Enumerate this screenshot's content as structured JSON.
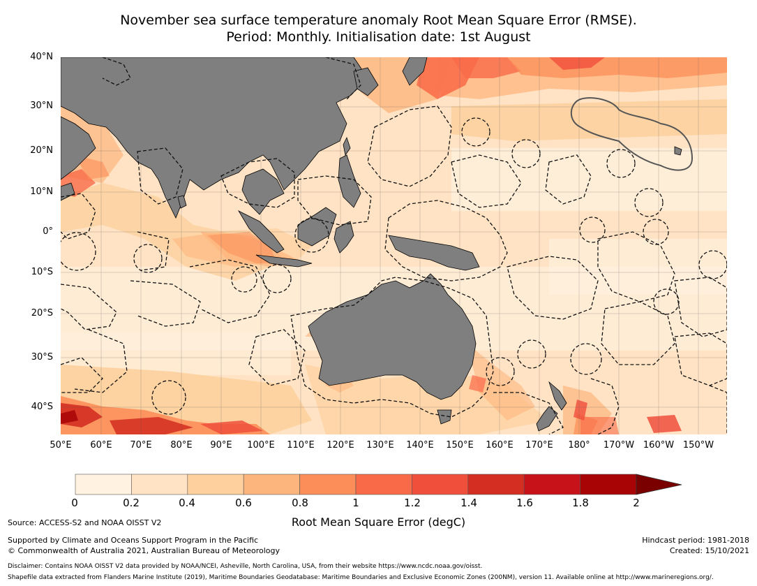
{
  "title": {
    "line1": "November sea surface temperature anomaly Root Mean Square Error (RMSE).",
    "line2": "Period: Monthly. Initialisation date: 1st August"
  },
  "axes": {
    "lat_labels": [
      "40°N",
      "30°N",
      "20°N",
      "10°N",
      "0°",
      "10°S",
      "20°S",
      "30°S",
      "40°S"
    ],
    "lon_labels": [
      "50°E",
      "60°E",
      "70°E",
      "80°E",
      "90°E",
      "100°E",
      "110°E",
      "120°E",
      "130°E",
      "140°E",
      "150°E",
      "160°E",
      "170°E",
      "180°",
      "170°W",
      "160°W",
      "150°W"
    ]
  },
  "map": {
    "land_color": "#7f7f7f",
    "eez_style": "dashed black",
    "highlight_region": "Hawaii EEZ outline"
  },
  "colorbar": {
    "ticks": [
      "0",
      "0.2",
      "0.4",
      "0.6",
      "0.8",
      "1",
      "1.2",
      "1.4",
      "1.6",
      "1.8",
      "2"
    ],
    "colors": [
      "#fff2e0",
      "#ffe3c4",
      "#fdd09e",
      "#fdb57e",
      "#fc8e59",
      "#f96a48",
      "#f04f3c",
      "#d42d21",
      "#c7121a",
      "#a80406"
    ],
    "extend_color": "#7a0000",
    "label": "Root Mean Square Error (degC)"
  },
  "footer": {
    "source": "Source: ACCESS-S2 and NOAA OISST V2",
    "supported": "Supported by Climate and Oceans Support Program in the Pacific",
    "copyright": "© Commonwealth of Australia 2021, Australian Bureau of Meteorology",
    "hindcast": "Hindcast period: 1981-2018",
    "created": "Created: 15/10/2021",
    "disclaimer": "Disclaimer: Contains NOAA OISST V2 data provided by NOAA/NCEI, Asheville, North Carolina, USA, from their website https://www.ncdc.noaa.gov/oisst.",
    "shapefile": "Shapefile data extracted from Flanders Marine Institute (2019), Maritime Boundaries Geodatabase: Maritime Boundaries and Exclusive Economic Zones (200NM), version 11. Available online at http://www.marineregions.org/."
  }
}
